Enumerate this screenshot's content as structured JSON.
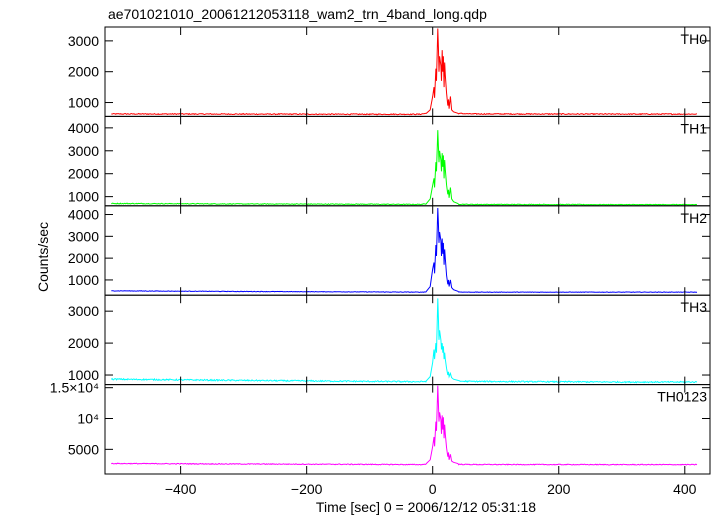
{
  "title": "ae701021010_20061212053118_wam2_trn_4band_long.qdp",
  "chart_data": {
    "type": "line",
    "title": "ae701021010_20061212053118_wam2_trn_4band_long.qdp",
    "xlabel": "Time [sec] 0 = 2006/12/12 05:31:18",
    "ylabel": "Counts/sec",
    "xlim": [
      -520,
      440
    ],
    "x_ticks": [
      {
        "value": -400,
        "label": "−400"
      },
      {
        "value": -200,
        "label": "−200"
      },
      {
        "value": 0,
        "label": "0"
      },
      {
        "value": 200,
        "label": "200"
      },
      {
        "value": 400,
        "label": "400"
      }
    ],
    "grid": false,
    "legend": "none",
    "panels": [
      {
        "name": "TH0",
        "color": "#ff0000",
        "ylim": [
          550,
          3450
        ],
        "y_ticks": [
          {
            "value": 1000,
            "label": "1000"
          },
          {
            "value": 2000,
            "label": "2000"
          },
          {
            "value": 3000,
            "label": "3000"
          }
        ],
        "baseline": [
          [
            -510,
            630
          ],
          [
            -300,
            625
          ],
          [
            -100,
            620
          ],
          [
            -20,
            620
          ],
          [
            0,
            680
          ],
          [
            60,
            630
          ],
          [
            300,
            625
          ],
          [
            420,
            625
          ]
        ],
        "burst": [
          [
            -10,
            650
          ],
          [
            -4,
            760
          ],
          [
            0,
            1200
          ],
          [
            2,
            1500
          ],
          [
            3,
            1150
          ],
          [
            5,
            2100
          ],
          [
            6,
            1700
          ],
          [
            8,
            3400
          ],
          [
            9,
            2800
          ],
          [
            10,
            2000
          ],
          [
            11,
            2500
          ],
          [
            13,
            2200
          ],
          [
            14,
            1700
          ],
          [
            15,
            2700
          ],
          [
            16,
            2000
          ],
          [
            17,
            2500
          ],
          [
            18,
            1500
          ],
          [
            19,
            2300
          ],
          [
            20,
            1900
          ],
          [
            22,
            1300
          ],
          [
            24,
            900
          ],
          [
            25,
            1100
          ],
          [
            26,
            800
          ],
          [
            28,
            1200
          ],
          [
            30,
            760
          ],
          [
            33,
            700
          ],
          [
            40,
            650
          ]
        ]
      },
      {
        "name": "TH1",
        "color": "#00ff00",
        "ylim": [
          600,
          4500
        ],
        "y_ticks": [
          {
            "value": 1000,
            "label": "1000"
          },
          {
            "value": 2000,
            "label": "2000"
          },
          {
            "value": 3000,
            "label": "3000"
          },
          {
            "value": 4000,
            "label": "4000"
          }
        ],
        "baseline": [
          [
            -510,
            700
          ],
          [
            -300,
            680
          ],
          [
            -100,
            670
          ],
          [
            -20,
            660
          ],
          [
            0,
            700
          ],
          [
            60,
            660
          ],
          [
            300,
            650
          ],
          [
            420,
            650
          ]
        ],
        "burst": [
          [
            -10,
            700
          ],
          [
            -4,
            900
          ],
          [
            0,
            1500
          ],
          [
            2,
            1800
          ],
          [
            3,
            1400
          ],
          [
            5,
            2500
          ],
          [
            6,
            2100
          ],
          [
            8,
            3900
          ],
          [
            9,
            3200
          ],
          [
            10,
            2500
          ],
          [
            11,
            3000
          ],
          [
            13,
            2600
          ],
          [
            14,
            2100
          ],
          [
            15,
            2900
          ],
          [
            16,
            2300
          ],
          [
            17,
            2800
          ],
          [
            18,
            1800
          ],
          [
            19,
            2600
          ],
          [
            20,
            2200
          ],
          [
            22,
            1500
          ],
          [
            24,
            1100
          ],
          [
            25,
            1300
          ],
          [
            26,
            950
          ],
          [
            28,
            1400
          ],
          [
            30,
            900
          ],
          [
            33,
            780
          ],
          [
            40,
            700
          ]
        ]
      },
      {
        "name": "TH2",
        "color": "#0000ff",
        "ylim": [
          300,
          4400
        ],
        "y_ticks": [
          {
            "value": 1000,
            "label": "1000"
          },
          {
            "value": 2000,
            "label": "2000"
          },
          {
            "value": 3000,
            "label": "3000"
          },
          {
            "value": 4000,
            "label": "4000"
          }
        ],
        "baseline": [
          [
            -510,
            500
          ],
          [
            -300,
            470
          ],
          [
            -100,
            450
          ],
          [
            -20,
            440
          ],
          [
            0,
            460
          ],
          [
            60,
            440
          ],
          [
            300,
            440
          ],
          [
            420,
            440
          ]
        ],
        "burst": [
          [
            -10,
            480
          ],
          [
            -4,
            700
          ],
          [
            0,
            1500
          ],
          [
            2,
            1800
          ],
          [
            3,
            1300
          ],
          [
            5,
            2600
          ],
          [
            6,
            2100
          ],
          [
            8,
            4300
          ],
          [
            9,
            3600
          ],
          [
            10,
            2700
          ],
          [
            11,
            3200
          ],
          [
            13,
            2800
          ],
          [
            14,
            2100
          ],
          [
            15,
            2900
          ],
          [
            16,
            2200
          ],
          [
            17,
            2700
          ],
          [
            18,
            1700
          ],
          [
            19,
            2400
          ],
          [
            20,
            2000
          ],
          [
            22,
            1200
          ],
          [
            24,
            800
          ],
          [
            25,
            1000
          ],
          [
            26,
            700
          ],
          [
            28,
            1000
          ],
          [
            30,
            650
          ],
          [
            33,
            550
          ],
          [
            40,
            480
          ]
        ]
      },
      {
        "name": "TH3",
        "color": "#00ffff",
        "ylim": [
          700,
          3500
        ],
        "y_ticks": [
          {
            "value": 1000,
            "label": "1000"
          },
          {
            "value": 2000,
            "label": "2000"
          },
          {
            "value": 3000,
            "label": "3000"
          }
        ],
        "baseline": [
          [
            -510,
            870
          ],
          [
            -300,
            830
          ],
          [
            -100,
            800
          ],
          [
            -20,
            790
          ],
          [
            0,
            820
          ],
          [
            60,
            800
          ],
          [
            300,
            780
          ],
          [
            420,
            780
          ]
        ],
        "burst": [
          [
            -10,
            820
          ],
          [
            -4,
            950
          ],
          [
            0,
            1400
          ],
          [
            2,
            1800
          ],
          [
            3,
            1500
          ],
          [
            5,
            2000
          ],
          [
            6,
            1700
          ],
          [
            8,
            3400
          ],
          [
            9,
            2800
          ],
          [
            10,
            2100
          ],
          [
            11,
            2400
          ],
          [
            13,
            2100
          ],
          [
            14,
            1800
          ],
          [
            15,
            2000
          ],
          [
            16,
            1700
          ],
          [
            17,
            1900
          ],
          [
            18,
            1500
          ],
          [
            19,
            1700
          ],
          [
            20,
            1500
          ],
          [
            22,
            1200
          ],
          [
            24,
            1000
          ],
          [
            25,
            1100
          ],
          [
            26,
            950
          ],
          [
            28,
            1050
          ],
          [
            30,
            920
          ],
          [
            33,
            870
          ],
          [
            40,
            830
          ]
        ]
      },
      {
        "name": "TH0123",
        "color": "#ff00ff",
        "ylim": [
          1000,
          15500
        ],
        "y_ticks": [
          {
            "value": 5000,
            "label": "5000"
          },
          {
            "value": 10000,
            "label": "10⁴"
          },
          {
            "value": 15000,
            "label": "1.5×10⁴"
          }
        ],
        "baseline": [
          [
            -510,
            2700
          ],
          [
            -300,
            2620
          ],
          [
            -100,
            2560
          ],
          [
            -20,
            2520
          ],
          [
            0,
            2650
          ],
          [
            60,
            2540
          ],
          [
            300,
            2520
          ],
          [
            420,
            2520
          ]
        ],
        "burst": [
          [
            -10,
            2700
          ],
          [
            -4,
            3300
          ],
          [
            0,
            5500
          ],
          [
            2,
            7000
          ],
          [
            3,
            5500
          ],
          [
            5,
            9500
          ],
          [
            6,
            8000
          ],
          [
            8,
            15400
          ],
          [
            9,
            12500
          ],
          [
            10,
            9500
          ],
          [
            11,
            11000
          ],
          [
            13,
            9800
          ],
          [
            14,
            7500
          ],
          [
            15,
            10500
          ],
          [
            16,
            8200
          ],
          [
            17,
            10200
          ],
          [
            18,
            6800
          ],
          [
            19,
            9000
          ],
          [
            20,
            7500
          ],
          [
            22,
            5200
          ],
          [
            24,
            3800
          ],
          [
            25,
            4500
          ],
          [
            26,
            3300
          ],
          [
            28,
            4200
          ],
          [
            30,
            3100
          ],
          [
            33,
            2900
          ],
          [
            40,
            2700
          ]
        ]
      }
    ]
  }
}
